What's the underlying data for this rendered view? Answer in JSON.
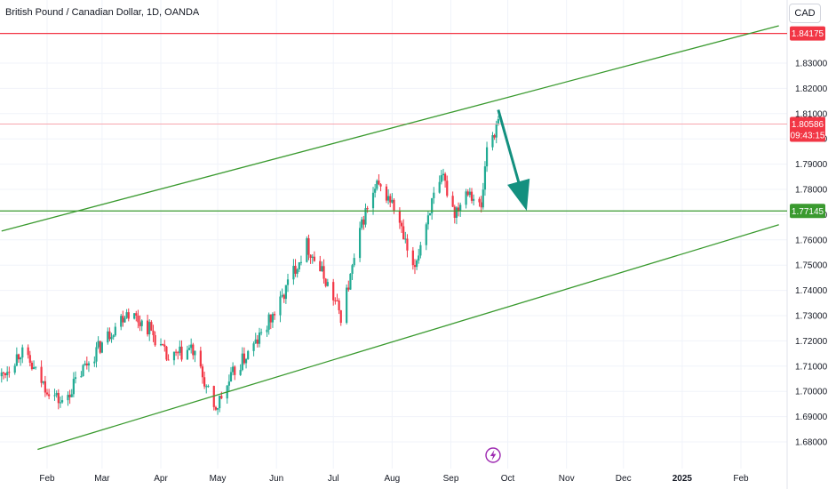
{
  "header": {
    "title": "British Pound / Canadian Dollar, 1D, OANDA",
    "currency": "CAD"
  },
  "colors": {
    "up": "#22ab94",
    "down": "#f23645",
    "channel": "#3a9a2f",
    "resistance": "#f23645",
    "support_line": "#3a9a2f",
    "arrow": "#13907f",
    "grid": "#f0f3fa",
    "event_icon": "#9c27b0"
  },
  "price_axis": {
    "min": 1.675,
    "max": 1.848,
    "ticks": [
      "1.68000",
      "1.69000",
      "1.70000",
      "1.71000",
      "1.72000",
      "1.73000",
      "1.74000",
      "1.75000",
      "1.76000",
      "1.77000",
      "1.78000",
      "1.79000",
      "1.80000",
      "1.81000",
      "1.82000",
      "1.83000"
    ],
    "tick_values": [
      1.68,
      1.69,
      1.7,
      1.71,
      1.72,
      1.73,
      1.74,
      1.75,
      1.76,
      1.77,
      1.78,
      1.79,
      1.8,
      1.81,
      1.82,
      1.83
    ]
  },
  "time_axis": {
    "labels": [
      "Feb",
      "Mar",
      "Apr",
      "May",
      "Jun",
      "Jul",
      "Aug",
      "Sep",
      "Oct",
      "Nov",
      "Dec",
      "2025",
      "Feb"
    ],
    "dates": [
      "2024-02-01",
      "2024-03-01",
      "2024-04-01",
      "2024-05-01",
      "2024-06-01",
      "2024-07-01",
      "2024-08-01",
      "2024-09-01",
      "2024-10-01",
      "2024-11-01",
      "2024-12-01",
      "2025-01-01",
      "2025-02-01"
    ],
    "start_date": "2024-01-08",
    "end_date": "2025-02-21"
  },
  "levels": {
    "resistance": {
      "value": 1.84175,
      "label": "1.84175"
    },
    "support": {
      "value": 1.77145,
      "label": "1.77145"
    },
    "current": {
      "value": 1.80586,
      "label": "1.80586",
      "countdown": "09:43:15"
    }
  },
  "channel_lines": {
    "upper": [
      {
        "date": "2024-01-08",
        "value": 1.7635
      },
      {
        "date": "2025-02-21",
        "value": 1.8448
      }
    ],
    "lower": [
      {
        "date": "2024-01-27",
        "value": 1.677
      },
      {
        "date": "2025-02-21",
        "value": 1.766
      }
    ]
  },
  "forecast_arrow": {
    "from": {
      "date": "2024-09-26",
      "value": 1.8115
    },
    "to": {
      "date": "2024-10-11",
      "value": 1.7715
    }
  },
  "chart_data": {
    "type": "candlestick",
    "title": "British Pound / Canadian Dollar, 1D, OANDA",
    "ylim": [
      1.675,
      1.848
    ],
    "grid": true,
    "x": [
      "2024-01-08",
      "2024-01-18",
      "2024-01-30",
      "2024-02-09",
      "2024-02-21",
      "2024-03-04",
      "2024-03-14",
      "2024-03-26",
      "2024-04-05",
      "2024-04-17",
      "2024-04-23",
      "2024-04-29",
      "2024-05-10",
      "2024-05-22",
      "2024-06-03",
      "2024-06-10",
      "2024-06-17",
      "2024-06-27",
      "2024-07-05",
      "2024-07-10",
      "2024-07-17",
      "2024-07-24",
      "2024-07-31",
      "2024-08-05",
      "2024-08-12",
      "2024-08-21",
      "2024-08-28",
      "2024-09-03",
      "2024-09-10",
      "2024-09-17",
      "2024-09-20",
      "2024-09-26"
    ],
    "y": [
      1.706,
      1.716,
      1.703,
      1.695,
      1.71,
      1.722,
      1.732,
      1.725,
      1.712,
      1.717,
      1.706,
      1.692,
      1.708,
      1.72,
      1.735,
      1.748,
      1.758,
      1.744,
      1.73,
      1.745,
      1.769,
      1.781,
      1.776,
      1.766,
      1.747,
      1.773,
      1.784,
      1.771,
      1.781,
      1.772,
      1.797,
      1.806
    ],
    "last_price": 1.80586
  }
}
